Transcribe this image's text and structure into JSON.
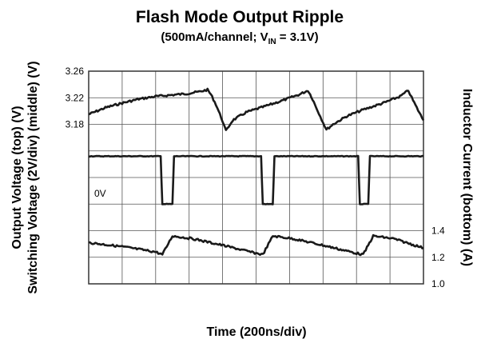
{
  "chart_data": {
    "type": "line",
    "title": "Flash Mode Output Ripple",
    "subtitle": {
      "prefix": "(500mA/channel; V",
      "subscript": "IN",
      "suffix": " = 3.1V)"
    },
    "xlabel": "Time (200ns/div)",
    "ylabel_left_1": "Output Voltage (top) (V)",
    "ylabel_left_2": "Switching Voltage (2V/div) (middle) (V)",
    "ylabel_right": "Inductor Current (bottom) (A)",
    "grid": true,
    "x_divisions": 10,
    "y_divisions": 8,
    "x_unit_per_div": "200ns",
    "left_ticks": [
      "3.26",
      "3.22",
      "3.18"
    ],
    "right_ticks": [
      "1.4",
      "1.2",
      "1.0"
    ],
    "zero_marker": "0V",
    "trace_color": "#1a1a1a",
    "series": [
      {
        "key": "output_voltage",
        "axis": "left",
        "unit": "V",
        "x": [
          0,
          0.5,
          1.0,
          1.5,
          2.0,
          2.9,
          3.3,
          3.55,
          3.65,
          3.8,
          4.0,
          4.1,
          4.3,
          4.7,
          5.2,
          5.8,
          6.3,
          6.55,
          6.65,
          6.8,
          7.0,
          7.1,
          7.3,
          7.7,
          8.2,
          8.8,
          9.3,
          9.55,
          9.65,
          9.8,
          10.0
        ],
        "y": [
          3.195,
          3.205,
          3.212,
          3.218,
          3.222,
          3.226,
          3.229,
          3.232,
          3.225,
          3.21,
          3.185,
          3.17,
          3.186,
          3.198,
          3.206,
          3.216,
          3.225,
          3.231,
          3.222,
          3.205,
          3.183,
          3.172,
          3.18,
          3.192,
          3.202,
          3.212,
          3.222,
          3.231,
          3.22,
          3.205,
          3.186
        ]
      },
      {
        "key": "switching_voltage",
        "axis": "middle",
        "unit": "V",
        "x": [
          0,
          2.15,
          2.2,
          2.5,
          2.55,
          5.15,
          5.2,
          5.5,
          5.55,
          8.05,
          8.1,
          8.35,
          8.4,
          10.0
        ],
        "y": [
          3.6,
          3.6,
          0.0,
          0.0,
          3.6,
          3.6,
          0.0,
          0.0,
          3.6,
          3.6,
          0.0,
          0.0,
          3.6,
          3.6
        ]
      },
      {
        "key": "inductor_current",
        "axis": "right",
        "unit": "A",
        "x": [
          0,
          1.0,
          2.0,
          2.2,
          2.5,
          3.1,
          4.0,
          5.0,
          5.2,
          5.5,
          6.1,
          7.0,
          8.0,
          8.2,
          8.5,
          9.1,
          10.0
        ],
        "y": [
          1.31,
          1.28,
          1.24,
          1.22,
          1.36,
          1.34,
          1.29,
          1.23,
          1.22,
          1.36,
          1.34,
          1.29,
          1.23,
          1.22,
          1.36,
          1.34,
          1.27
        ]
      }
    ]
  }
}
